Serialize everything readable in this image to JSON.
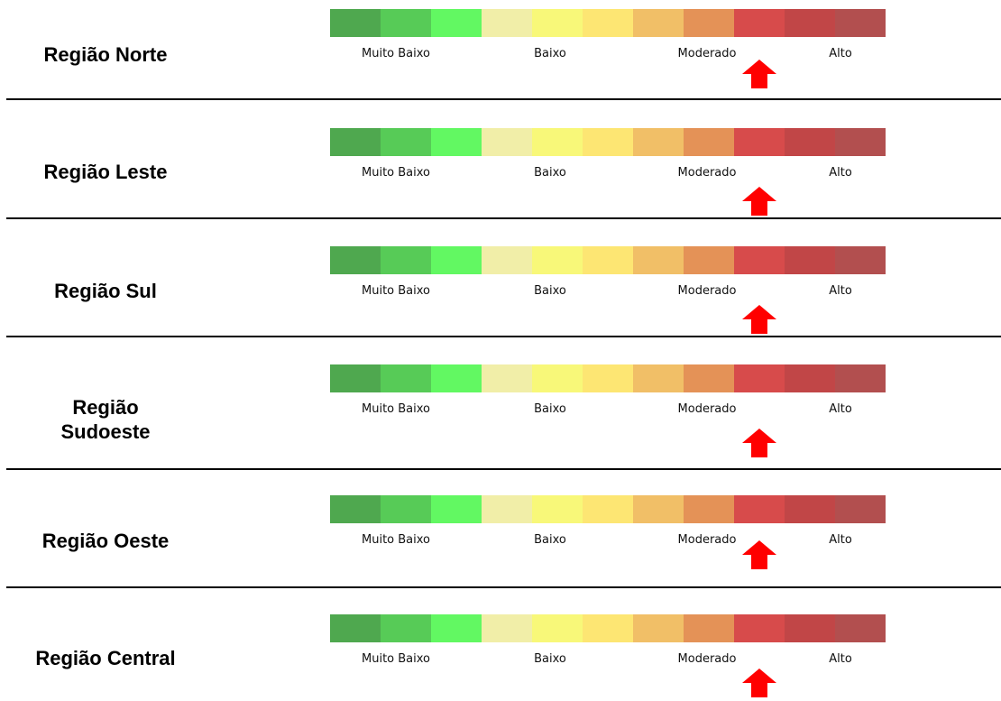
{
  "scale": {
    "colors": [
      "#4fa84f",
      "#57cb57",
      "#62f862",
      "#f1eea8",
      "#f8f879",
      "#fde673",
      "#f1bf67",
      "#e49257",
      "#d74b4b",
      "#c14647",
      "#b24f4f"
    ],
    "tick_labels": [
      "Muito Baixo",
      "Baixo",
      "Moderado",
      "Alto"
    ]
  },
  "indicator_color": "#ff0000",
  "regions": [
    {
      "name": "Região Norte",
      "level": "Moderado",
      "level_index": 8
    },
    {
      "name": "Região Leste",
      "level": "Moderado",
      "level_index": 8
    },
    {
      "name": "Região Sul",
      "level": "Moderado",
      "level_index": 8
    },
    {
      "name": "Região\nSudoeste",
      "level": "Moderado",
      "level_index": 8
    },
    {
      "name": "Região Oeste",
      "level": "Moderado",
      "level_index": 8
    },
    {
      "name": "Região Central",
      "level": "Moderado",
      "level_index": 8
    }
  ]
}
